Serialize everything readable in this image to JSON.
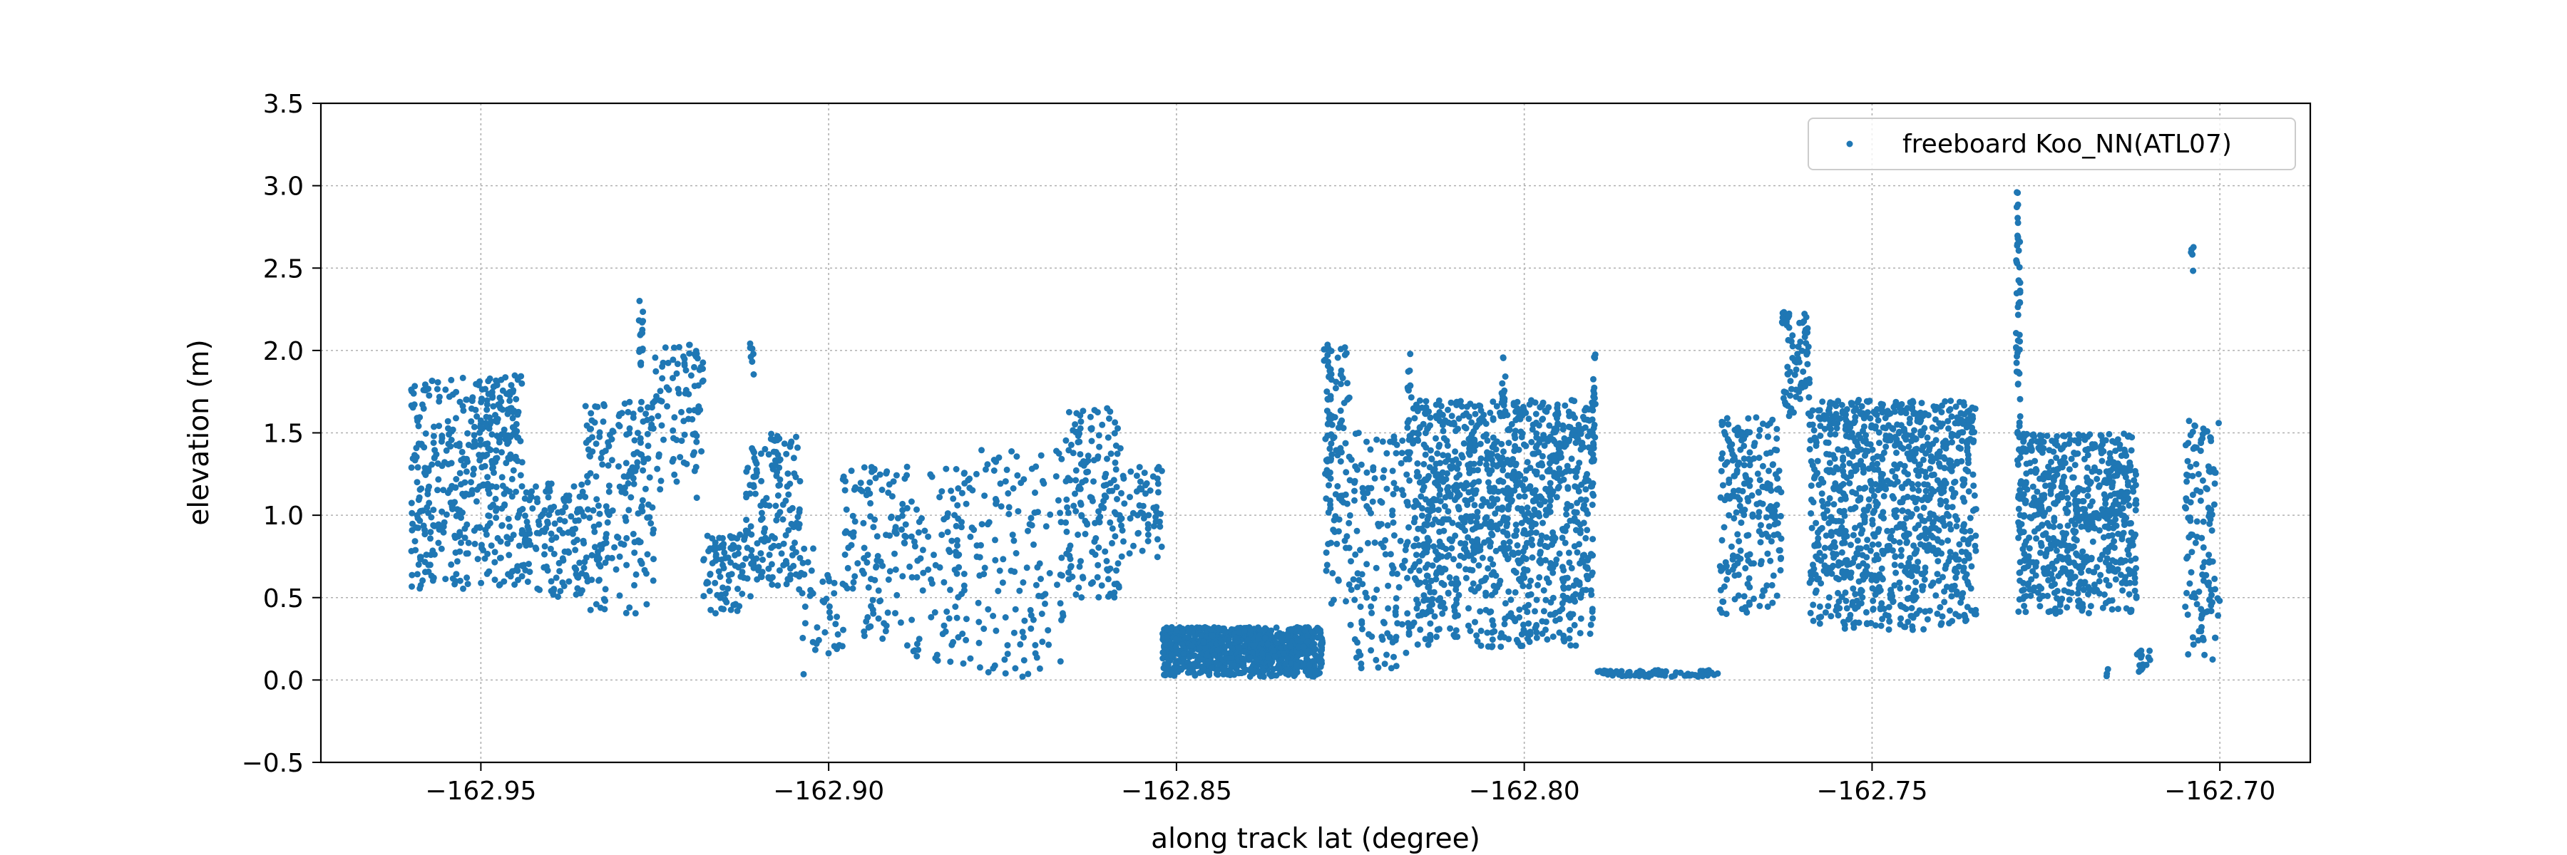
{
  "chart_data": {
    "type": "scatter",
    "title": "",
    "xlabel": "along track lat (degree)",
    "ylabel": "elevation (m)",
    "xlim": [
      -162.973,
      -162.687
    ],
    "ylim": [
      -0.5,
      3.5
    ],
    "xticks": [
      -162.95,
      -162.9,
      -162.85,
      -162.8,
      -162.75,
      -162.7
    ],
    "xtick_labels": [
      "−162.95",
      "−162.90",
      "−162.85",
      "−162.80",
      "−162.75",
      "−162.70"
    ],
    "yticks": [
      -0.5,
      0.0,
      0.5,
      1.0,
      1.5,
      2.0,
      2.5,
      3.0,
      3.5
    ],
    "ytick_labels": [
      "−0.5",
      "0.0",
      "0.5",
      "1.0",
      "1.5",
      "2.0",
      "2.5",
      "3.0",
      "3.5"
    ],
    "grid": true,
    "legend_position": "top-right",
    "series": [
      {
        "name": "freeboard Koo_NN(ATL07)",
        "color": "#1f77b4",
        "segments": [
          {
            "x0": -162.96,
            "x1": -162.944,
            "ymin": 0.55,
            "ymax": 1.85,
            "density": 1.0
          },
          {
            "x0": -162.944,
            "x1": -162.935,
            "ymin": 0.5,
            "ymax": 1.2,
            "density": 0.55
          },
          {
            "x0": -162.935,
            "x1": -162.925,
            "ymin": 0.4,
            "ymax": 1.7,
            "density": 0.7
          },
          {
            "x0": -162.925,
            "x1": -162.918,
            "ymin": 1.1,
            "ymax": 2.05,
            "density": 0.45
          },
          {
            "x0": -162.918,
            "x1": -162.912,
            "ymin": 0.4,
            "ymax": 0.9,
            "density": 0.5
          },
          {
            "x0": -162.912,
            "x1": -162.904,
            "ymin": 0.5,
            "ymax": 1.5,
            "density": 0.7
          },
          {
            "x0": -162.904,
            "x1": -162.898,
            "ymin": 0.0,
            "ymax": 0.8,
            "density": 0.25
          },
          {
            "x0": -162.898,
            "x1": -162.888,
            "ymin": 0.2,
            "ymax": 1.3,
            "density": 0.45
          },
          {
            "x0": -162.888,
            "x1": -162.88,
            "ymin": 0.1,
            "ymax": 1.3,
            "density": 0.4
          },
          {
            "x0": -162.88,
            "x1": -162.866,
            "ymin": 0.0,
            "ymax": 1.4,
            "density": 0.35
          },
          {
            "x0": -162.866,
            "x1": -162.858,
            "ymin": 0.5,
            "ymax": 1.65,
            "density": 0.7
          },
          {
            "x0": -162.858,
            "x1": -162.852,
            "ymin": 0.7,
            "ymax": 1.3,
            "density": 0.35
          },
          {
            "x0": -162.852,
            "x1": -162.829,
            "ymin": 0.02,
            "ymax": 0.32,
            "density": 1.4
          },
          {
            "x0": -162.829,
            "x1": -162.825,
            "ymin": 0.3,
            "ymax": 2.05,
            "density": 0.8
          },
          {
            "x0": -162.825,
            "x1": -162.816,
            "ymin": 0.05,
            "ymax": 1.5,
            "density": 0.6
          },
          {
            "x0": -162.816,
            "x1": -162.79,
            "ymin": 0.2,
            "ymax": 1.7,
            "density": 1.5
          },
          {
            "x0": -162.79,
            "x1": -162.772,
            "ymin": 0.02,
            "ymax": 0.06,
            "density": 0.15
          },
          {
            "x0": -162.772,
            "x1": -162.763,
            "ymin": 0.4,
            "ymax": 1.6,
            "density": 0.9
          },
          {
            "x0": -162.763,
            "x1": -162.759,
            "ymin": 1.6,
            "ymax": 2.25,
            "density": 0.7
          },
          {
            "x0": -162.759,
            "x1": -162.735,
            "ymin": 0.3,
            "ymax": 1.7,
            "density": 1.5
          },
          {
            "x0": -162.729,
            "x1": -162.712,
            "ymin": 0.4,
            "ymax": 1.5,
            "density": 1.4
          },
          {
            "x0": -162.712,
            "x1": -162.71,
            "ymin": 0.03,
            "ymax": 0.2,
            "density": 0.3
          },
          {
            "x0": -162.705,
            "x1": -162.7,
            "ymin": 0.1,
            "ymax": 1.6,
            "density": 0.9
          }
        ],
        "spikes": [
          {
            "x": -162.927,
            "ymin": 1.9,
            "ymax": 2.42
          },
          {
            "x": -162.911,
            "ymin": 1.8,
            "ymax": 2.05
          },
          {
            "x": -162.828,
            "ymin": 1.0,
            "ymax": 2.05
          },
          {
            "x": -162.8165,
            "ymin": 1.3,
            "ymax": 1.98
          },
          {
            "x": -162.803,
            "ymin": 1.6,
            "ymax": 2.12
          },
          {
            "x": -162.79,
            "ymin": 1.3,
            "ymax": 1.98
          },
          {
            "x": -162.729,
            "ymin": 1.3,
            "ymax": 3.02
          },
          {
            "x": -162.704,
            "ymin": 2.48,
            "ymax": 2.66
          },
          {
            "x": -162.716,
            "ymin": 0.02,
            "ymax": 0.12
          }
        ]
      }
    ]
  }
}
